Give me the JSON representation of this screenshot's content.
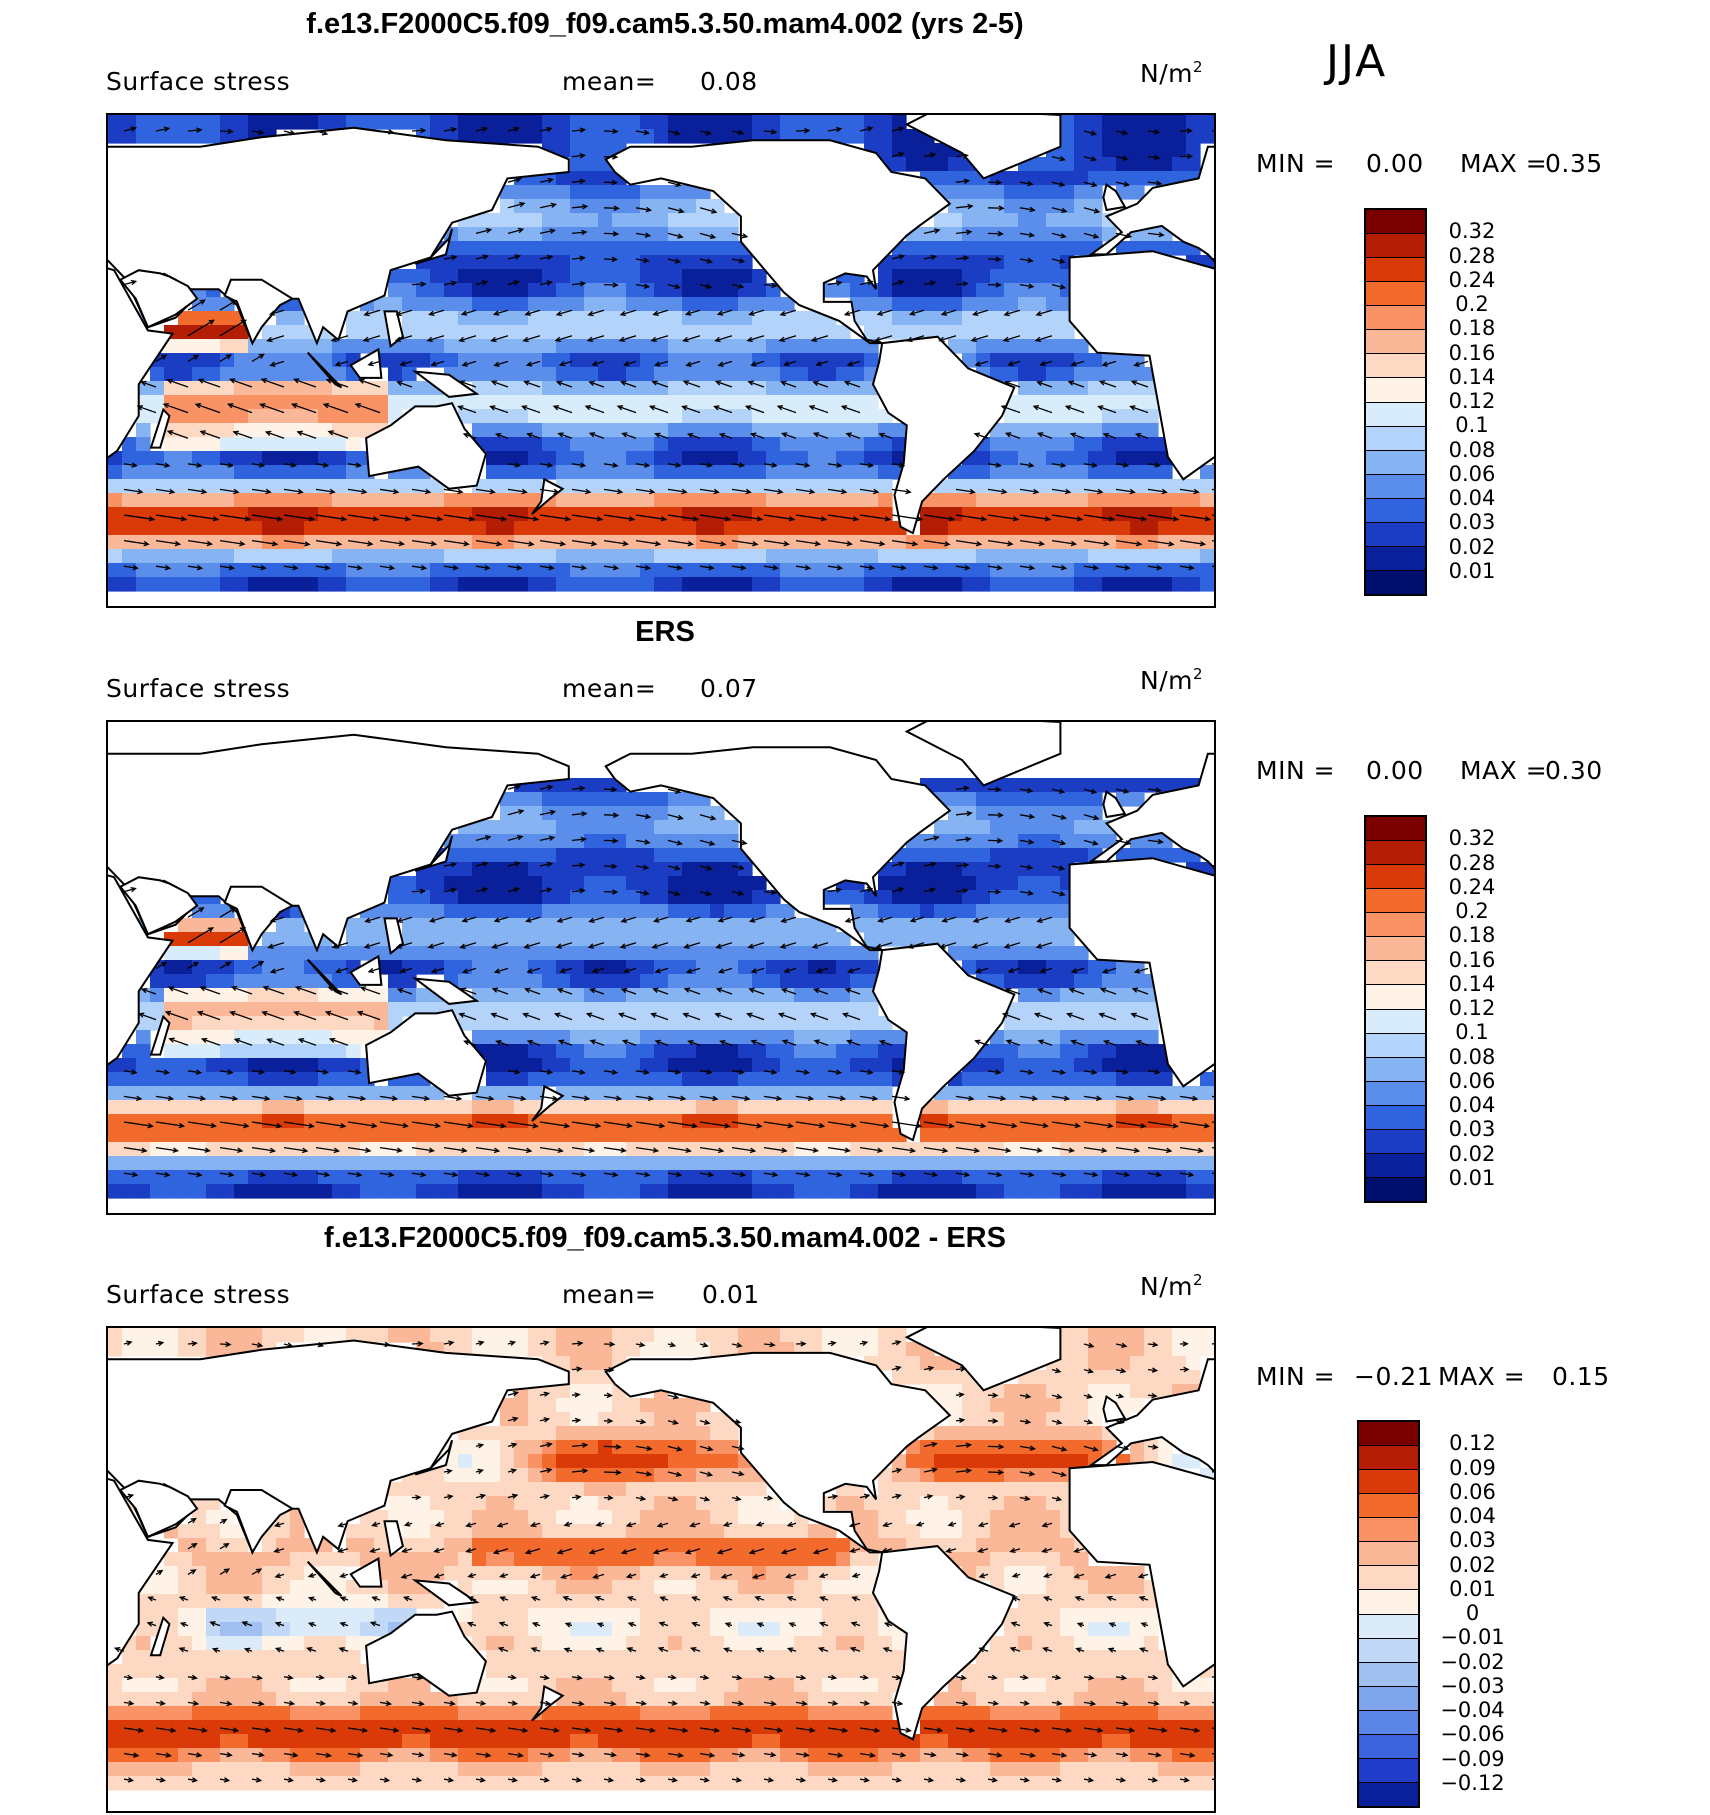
{
  "season": "JJA",
  "panels": [
    {
      "title": "f.e13.F2000C5.f09_f09.cam5.3.50.mam4.002 (yrs 2-5)",
      "variable": "Surface stress",
      "mean_label": "mean=",
      "mean_value": "0.08",
      "units_base": "N/m",
      "units_exp": "2",
      "min_label": "MIN =",
      "min_value": "0.00",
      "max_label": "MAX =",
      "max_value": "0.35",
      "kind": "model",
      "colorbar": {
        "labels": [
          "0.32",
          "0.28",
          "0.24",
          "0.2",
          "0.18",
          "0.16",
          "0.14",
          "0.12",
          "0.1",
          "0.08",
          "0.06",
          "0.04",
          "0.03",
          "0.02",
          "0.01"
        ],
        "colors": [
          "#7a0000",
          "#b31d04",
          "#d93a08",
          "#f26a2c",
          "#f99265",
          "#fbb898",
          "#fdd9c4",
          "#fff2e6",
          "#d9ecfc",
          "#b3d3fa",
          "#86b4f3",
          "#5b8eeb",
          "#2f64de",
          "#1a3dc4",
          "#0a1f9a",
          "#000f6e"
        ]
      }
    },
    {
      "title": "ERS",
      "variable": "Surface stress",
      "mean_label": "mean=",
      "mean_value": "0.07",
      "units_base": "N/m",
      "units_exp": "2",
      "min_label": "MIN =",
      "min_value": "0.00",
      "max_label": "MAX =",
      "max_value": "0.30",
      "kind": "obs",
      "colorbar": {
        "labels": [
          "0.32",
          "0.28",
          "0.24",
          "0.2",
          "0.18",
          "0.16",
          "0.14",
          "0.12",
          "0.1",
          "0.08",
          "0.06",
          "0.04",
          "0.03",
          "0.02",
          "0.01"
        ],
        "colors": [
          "#7a0000",
          "#b31d04",
          "#d93a08",
          "#f26a2c",
          "#f99265",
          "#fbb898",
          "#fdd9c4",
          "#fff2e6",
          "#d9ecfc",
          "#b3d3fa",
          "#86b4f3",
          "#5b8eeb",
          "#2f64de",
          "#1a3dc4",
          "#0a1f9a",
          "#000f6e"
        ]
      }
    },
    {
      "title": "f.e13.F2000C5.f09_f09.cam5.3.50.mam4.002 - ERS",
      "variable": "Surface stress",
      "mean_label": "mean=",
      "mean_value": "0.01",
      "units_base": "N/m",
      "units_exp": "2",
      "min_label": "MIN =",
      "min_value": "−0.21",
      "max_label": "MAX =",
      "max_value": "0.15",
      "kind": "diff",
      "colorbar": {
        "labels": [
          "0.12",
          "0.09",
          "0.06",
          "0.04",
          "0.03",
          "0.02",
          "0.01",
          "0",
          "−0.01",
          "−0.02",
          "−0.03",
          "−0.04",
          "−0.06",
          "−0.09",
          "−0.12"
        ],
        "colors": [
          "#7a0000",
          "#b31d04",
          "#d93a08",
          "#f26a2c",
          "#f99265",
          "#fbb898",
          "#fdd9c4",
          "#fff2e6",
          "#dcebfa",
          "#c2d8f7",
          "#a1c0f2",
          "#7ea4ec",
          "#5b86e6",
          "#3b63dc",
          "#1f3dc8",
          "#0a1f9a"
        ]
      }
    }
  ],
  "chart_data": [
    {
      "type": "heatmap",
      "title": "f.e13.F2000C5.f09_f09.cam5.3.50.mam4.002 (yrs 2-5)",
      "subtitle": "Surface stress",
      "season": "JJA",
      "units": "N/m2",
      "mean": 0.08,
      "min": 0.0,
      "max": 0.35,
      "colorbar_levels": [
        0.01,
        0.02,
        0.03,
        0.04,
        0.06,
        0.08,
        0.1,
        0.12,
        0.14,
        0.16,
        0.18,
        0.2,
        0.24,
        0.28,
        0.32
      ],
      "overlay": "wind stress vectors (arrows)"
    },
    {
      "type": "heatmap",
      "title": "ERS",
      "subtitle": "Surface stress",
      "season": "JJA",
      "units": "N/m2",
      "mean": 0.07,
      "min": 0.0,
      "max": 0.3,
      "colorbar_levels": [
        0.01,
        0.02,
        0.03,
        0.04,
        0.06,
        0.08,
        0.1,
        0.12,
        0.14,
        0.16,
        0.18,
        0.2,
        0.24,
        0.28,
        0.32
      ],
      "overlay": "wind stress vectors (arrows)"
    },
    {
      "type": "heatmap",
      "title": "f.e13.F2000C5.f09_f09.cam5.3.50.mam4.002 - ERS",
      "subtitle": "Surface stress",
      "season": "JJA",
      "units": "N/m2",
      "mean": 0.01,
      "min": -0.21,
      "max": 0.15,
      "colorbar_levels": [
        -0.12,
        -0.09,
        -0.06,
        -0.04,
        -0.03,
        -0.02,
        -0.01,
        0,
        0.01,
        0.02,
        0.03,
        0.04,
        0.06,
        0.09,
        0.12
      ],
      "overlay": "wind stress difference vectors (arrows)"
    }
  ]
}
